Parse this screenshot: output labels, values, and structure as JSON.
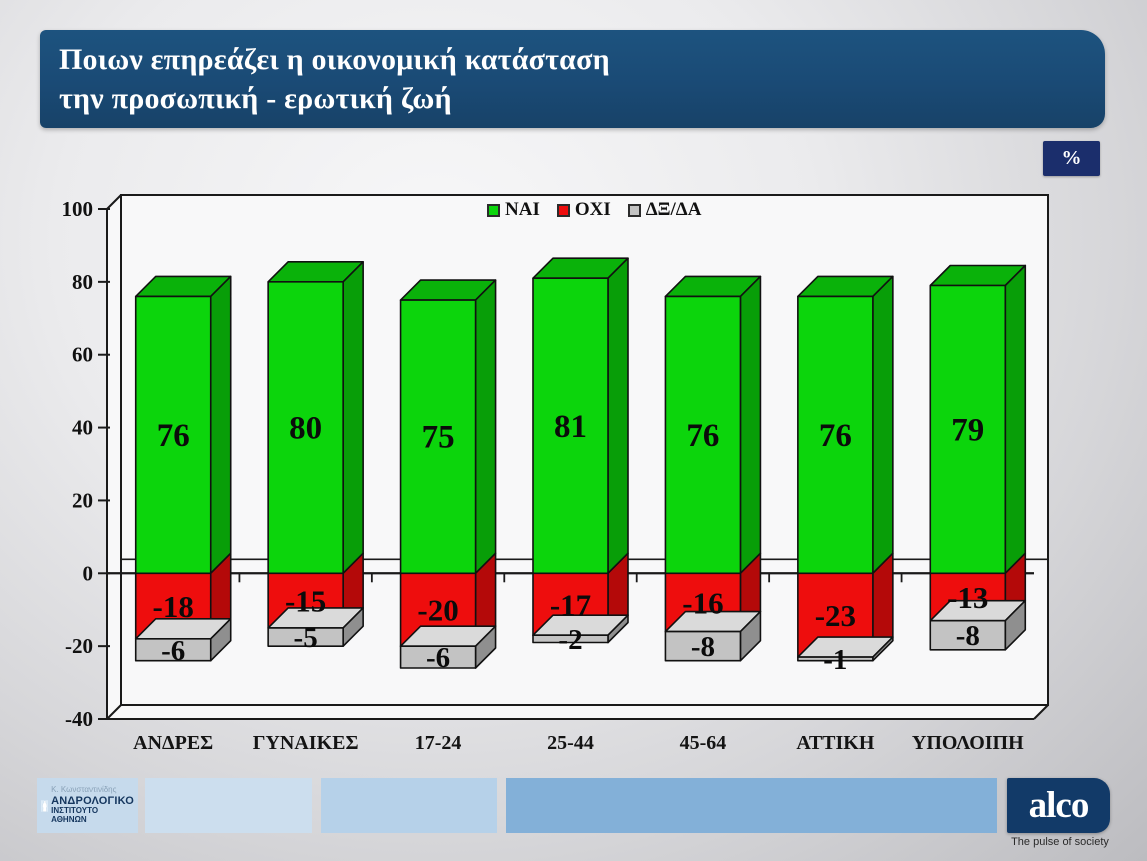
{
  "title": {
    "line1": "Ποιων επηρεάζει η οικονομική κατάσταση",
    "line2": "την προσωπική - ερωτική ζωή"
  },
  "unit_badge": "%",
  "colors": {
    "banner_bg": "#1a4a75",
    "percent_box_bg": "#1b2e6c",
    "alco_bg": "#123a68",
    "footer_strip_light": "#ccdeee",
    "footer_strip_mid": "#b6d1e9",
    "footer_strip_dark": "#83b0d8"
  },
  "chart_data": {
    "type": "bar",
    "subtype": "3d-stacked-columns",
    "categories": [
      "ΑΝΔΡΕΣ",
      "ΓΥΝΑΙΚΕΣ",
      "17-24",
      "25-44",
      "45-64",
      "ΑΤΤΙΚΗ",
      "ΥΠΟΛΟΙΠΗ"
    ],
    "series": [
      {
        "name": "ΝΑΙ",
        "color": "#0cd50c",
        "top_color": "#0ab20a",
        "side_color": "#089e08",
        "values": [
          76,
          80,
          75,
          81,
          76,
          76,
          79
        ]
      },
      {
        "name": "ΟΧΙ",
        "color": "#ee0d0d",
        "top_color": "#d20b0b",
        "side_color": "#b40909",
        "values": [
          -18,
          -15,
          -20,
          -17,
          -16,
          -23,
          -13
        ]
      },
      {
        "name": "ΔΞ/ΔΑ",
        "color": "#c3c3c3",
        "top_color": "#dadada",
        "side_color": "#8f8f8f",
        "values": [
          -6,
          -5,
          -6,
          -2,
          -8,
          -1,
          -8
        ]
      }
    ],
    "title": "",
    "xlabel": "",
    "ylabel": "",
    "ylim": [
      -40,
      100
    ],
    "ytick_step": 20,
    "grid": false,
    "legend_position": "top-center",
    "unit": "%"
  },
  "footer": {
    "logo": {
      "credit": "Κ. Κωνσταντινίδης",
      "line1": "ΑΝΔΡΟΛΟΓΙΚΟ",
      "line2": "ΙΝΣΤΙΤΟΥΤΟ ΑΘΗΝΩΝ"
    },
    "alco": {
      "name": "alco",
      "tagline": "The pulse of society"
    }
  }
}
